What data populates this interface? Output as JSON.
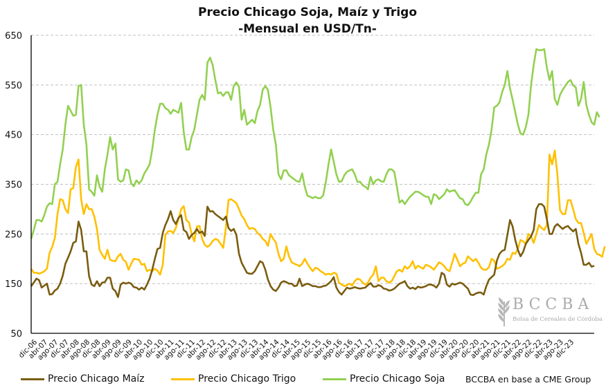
{
  "chart_data": {
    "type": "line",
    "title": "Precio Chicago Soja, Maíz y Trigo",
    "subtitle": "-Mensual en USD/Tn-",
    "xlabel": "",
    "ylabel": "",
    "ylim": [
      50,
      650
    ],
    "yticks": [
      50,
      150,
      250,
      350,
      450,
      550,
      650
    ],
    "grid": true,
    "legend_position": "bottom",
    "x_start": "dic-06",
    "x_end": "dic-23",
    "x_tick_labels": [
      "dic-06",
      "abr-07",
      "ago-07",
      "dic-07",
      "abr-08",
      "ago-08",
      "dic-08",
      "abr-09",
      "ago-09",
      "dic-09",
      "abr-10",
      "ago-10",
      "dic-10",
      "abr-11",
      "ago-11",
      "dic-11",
      "abr-12",
      "ago-12",
      "dic-12",
      "abr-13",
      "ago-13",
      "dic-13",
      "abr-14",
      "ago-14",
      "dic-14",
      "abr-15",
      "ago-15",
      "dic-15",
      "abr-16",
      "ago-16",
      "dic-16",
      "abr-17",
      "ago-17",
      "dic-17",
      "abr-18",
      "ago-18",
      "dic-18",
      "abr-19",
      "ago-19",
      "dic-19",
      "abr-20",
      "ago-20",
      "dic-20",
      "abr-21",
      "ago-21",
      "dic-21",
      "abr-22",
      "ago-22",
      "dic-22",
      "abr-23",
      "ago-23",
      "dic-23"
    ],
    "series": [
      {
        "name": "Precio Chicago Maíz",
        "color": "#7a5c0f",
        "values": [
          145,
          152,
          160,
          157,
          142,
          146,
          150,
          128,
          129,
          136,
          140,
          150,
          166,
          190,
          202,
          215,
          232,
          235,
          275,
          258,
          215,
          215,
          165,
          148,
          145,
          155,
          145,
          152,
          153,
          162,
          162,
          140,
          135,
          123,
          148,
          152,
          150,
          152,
          150,
          143,
          142,
          138,
          142,
          138,
          148,
          160,
          178,
          200,
          220,
          222,
          252,
          268,
          280,
          296,
          278,
          270,
          282,
          288,
          258,
          254,
          240,
          248,
          252,
          260,
          252,
          255,
          246,
          305,
          295,
          296,
          290,
          286,
          282,
          278,
          285,
          262,
          256,
          260,
          248,
          210,
          192,
          182,
          172,
          170,
          170,
          175,
          185,
          195,
          192,
          178,
          158,
          145,
          138,
          135,
          142,
          152,
          155,
          153,
          150,
          150,
          145,
          146,
          160,
          145,
          148,
          150,
          148,
          145,
          145,
          143,
          143,
          145,
          146,
          150,
          155,
          163,
          142,
          133,
          128,
          135,
          142,
          140,
          141,
          143,
          141,
          140,
          141,
          142,
          147,
          151,
          144,
          144,
          147,
          145,
          140,
          139,
          136,
          137,
          140,
          145,
          150,
          152,
          155,
          145,
          140,
          142,
          139,
          144,
          142,
          143,
          145,
          148,
          148,
          146,
          142,
          150,
          172,
          168,
          148,
          144,
          150,
          148,
          150,
          152,
          150,
          145,
          140,
          128,
          127,
          130,
          132,
          132,
          128,
          145,
          158,
          163,
          168,
          196,
          210,
          216,
          218,
          248,
          278,
          265,
          238,
          218,
          205,
          214,
          230,
          238,
          245,
          258,
          300,
          310,
          310,
          305,
          280,
          250,
          250,
          265,
          270,
          265,
          260,
          264,
          266,
          260,
          255,
          260,
          230,
          212,
          188,
          188,
          192,
          184,
          186
        ]
      },
      {
        "name": "Precio Chicago Trigo",
        "color": "#ffc000",
        "values": [
          180,
          172,
          172,
          170,
          172,
          175,
          180,
          212,
          224,
          242,
          290,
          320,
          318,
          300,
          292,
          340,
          342,
          385,
          400,
          320,
          290,
          310,
          300,
          300,
          285,
          260,
          218,
          208,
          200,
          218,
          198,
          196,
          195,
          205,
          210,
          198,
          194,
          178,
          190,
          200,
          199,
          198,
          188,
          190,
          175,
          178,
          175,
          180,
          176,
          168,
          188,
          248,
          255,
          256,
          252,
          262,
          280,
          300,
          306,
          278,
          273,
          250,
          235,
          265,
          266,
          240,
          228,
          224,
          228,
          236,
          240,
          238,
          230,
          222,
          262,
          318,
          320,
          316,
          312,
          300,
          287,
          280,
          268,
          260,
          262,
          260,
          252,
          248,
          240,
          236,
          226,
          250,
          240,
          233,
          210,
          195,
          200,
          225,
          205,
          193,
          190,
          188,
          185,
          190,
          200,
          190,
          182,
          175,
          182,
          180,
          175,
          172,
          168,
          170,
          168,
          172,
          170,
          152,
          148,
          145,
          147,
          150,
          146,
          155,
          160,
          158,
          152,
          148,
          152,
          162,
          168,
          185,
          155,
          162,
          162,
          155,
          152,
          155,
          165,
          175,
          178,
          174,
          185,
          180,
          185,
          195,
          180,
          186,
          183,
          180,
          188,
          186,
          183,
          178,
          185,
          193,
          190,
          185,
          178,
          175,
          192,
          210,
          198,
          185,
          190,
          192,
          205,
          200,
          195,
          200,
          192,
          182,
          178,
          178,
          183,
          200,
          196,
          180,
          182,
          185,
          190,
          200,
          198,
          212,
          210,
          220,
          238,
          235,
          230,
          250,
          245,
          232,
          250,
          268,
          262,
          258,
          268,
          410,
          390,
          418,
          370,
          298,
          290,
          290,
          318,
          318,
          300,
          280,
          272,
          272,
          252,
          230,
          240,
          250,
          220,
          210,
          208,
          204,
          225
        ]
      },
      {
        "name": "Precio Chicago Soja",
        "color": "#92d050",
        "values": [
          240,
          258,
          278,
          278,
          275,
          288,
          305,
          312,
          310,
          350,
          355,
          390,
          420,
          470,
          508,
          498,
          488,
          490,
          548,
          550,
          470,
          430,
          340,
          335,
          327,
          368,
          345,
          335,
          380,
          410,
          445,
          420,
          432,
          360,
          355,
          358,
          380,
          378,
          352,
          346,
          358,
          352,
          358,
          372,
          380,
          390,
          420,
          460,
          490,
          512,
          512,
          503,
          500,
          492,
          500,
          497,
          494,
          514,
          455,
          420,
          420,
          445,
          460,
          490,
          520,
          530,
          520,
          595,
          605,
          590,
          560,
          533,
          535,
          528,
          535,
          535,
          520,
          548,
          555,
          546,
          480,
          500,
          470,
          475,
          480,
          473,
          497,
          510,
          540,
          548,
          540,
          505,
          460,
          430,
          370,
          360,
          378,
          378,
          368,
          364,
          360,
          356,
          355,
          372,
          345,
          327,
          325,
          322,
          325,
          322,
          322,
          328,
          355,
          390,
          420,
          395,
          370,
          355,
          356,
          368,
          375,
          378,
          380,
          370,
          355,
          355,
          348,
          345,
          340,
          365,
          350,
          358,
          360,
          356,
          355,
          370,
          380,
          380,
          375,
          345,
          313,
          318,
          310,
          318,
          325,
          330,
          335,
          335,
          332,
          328,
          325,
          325,
          310,
          330,
          328,
          320,
          325,
          330,
          340,
          335,
          337,
          338,
          330,
          322,
          320,
          310,
          308,
          315,
          325,
          333,
          333,
          370,
          380,
          410,
          430,
          460,
          505,
          508,
          515,
          535,
          550,
          578,
          543,
          520,
          495,
          470,
          452,
          450,
          465,
          490,
          550,
          590,
          622,
          620,
          620,
          622,
          585,
          560,
          578,
          522,
          510,
          530,
          540,
          548,
          556,
          560,
          549,
          545,
          508,
          522,
          556,
          510,
          490,
          475,
          470,
          495,
          485
        ]
      }
    ]
  },
  "legend": {
    "maiz_label": "Precio Chicago Maíz",
    "trigo_label": "Precio Chicago Trigo",
    "soja_label": "Precio Chicago Soja"
  },
  "source": "BCCBA en base a CME Group",
  "watermark": {
    "brand": "BCCBA",
    "tagline": "Bolsa de Cereales de Córdoba"
  }
}
